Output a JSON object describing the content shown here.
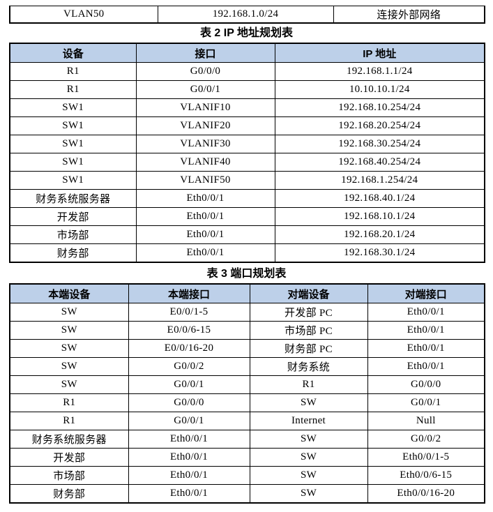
{
  "colors": {
    "header_bg": "#BDD0E9",
    "border": "#000000",
    "text": "#000000",
    "page_bg": "#FFFFFF"
  },
  "fragment_table": {
    "row": [
      "VLAN50",
      "192.168.1.0/24",
      "连接外部网络"
    ]
  },
  "table2": {
    "title": "表 2 IP 地址规划表",
    "headers": [
      "设备",
      "接口",
      "IP 地址"
    ],
    "rows": [
      [
        "R1",
        "G0/0/0",
        "192.168.1.1/24"
      ],
      [
        "R1",
        "G0/0/1",
        "10.10.10.1/24"
      ],
      [
        "SW1",
        "VLANIF10",
        "192.168.10.254/24"
      ],
      [
        "SW1",
        "VLANIF20",
        "192.168.20.254/24"
      ],
      [
        "SW1",
        "VLANIF30",
        "192.168.30.254/24"
      ],
      [
        "SW1",
        "VLANIF40",
        "192.168.40.254/24"
      ],
      [
        "SW1",
        "VLANIF50",
        "192.168.1.254/24"
      ],
      [
        "财务系统服务器",
        "Eth0/0/1",
        "192.168.40.1/24"
      ],
      [
        "开发部",
        "Eth0/0/1",
        "192.168.10.1/24"
      ],
      [
        "市场部",
        "Eth0/0/1",
        "192.168.20.1/24"
      ],
      [
        "财务部",
        "Eth0/0/1",
        "192.168.30.1/24"
      ]
    ]
  },
  "table3": {
    "title": "表 3 端口规划表",
    "headers": [
      "本端设备",
      "本端接口",
      "对端设备",
      "对端接口"
    ],
    "rows": [
      [
        "SW",
        "E0/0/1-5",
        "开发部 PC",
        "Eth0/0/1"
      ],
      [
        "SW",
        "E0/0/6-15",
        "市场部 PC",
        "Eth0/0/1"
      ],
      [
        "SW",
        "E0/0/16-20",
        "财务部 PC",
        "Eth0/0/1"
      ],
      [
        "SW",
        "G0/0/2",
        "财务系统",
        "Eth0/0/1"
      ],
      [
        "SW",
        "G0/0/1",
        "R1",
        "G0/0/0"
      ],
      [
        "R1",
        "G0/0/0",
        "SW",
        "G0/0/1"
      ],
      [
        "R1",
        "G0/0/1",
        "Internet",
        "Null"
      ],
      [
        "财务系统服务器",
        "Eth0/0/1",
        "SW",
        "G0/0/2"
      ],
      [
        "开发部",
        "Eth0/0/1",
        "SW",
        "Eth0/0/1-5"
      ],
      [
        "市场部",
        "Eth0/0/1",
        "SW",
        "Eth0/0/6-15"
      ],
      [
        "财务部",
        "Eth0/0/1",
        "SW",
        "Eth0/0/16-20"
      ]
    ]
  }
}
